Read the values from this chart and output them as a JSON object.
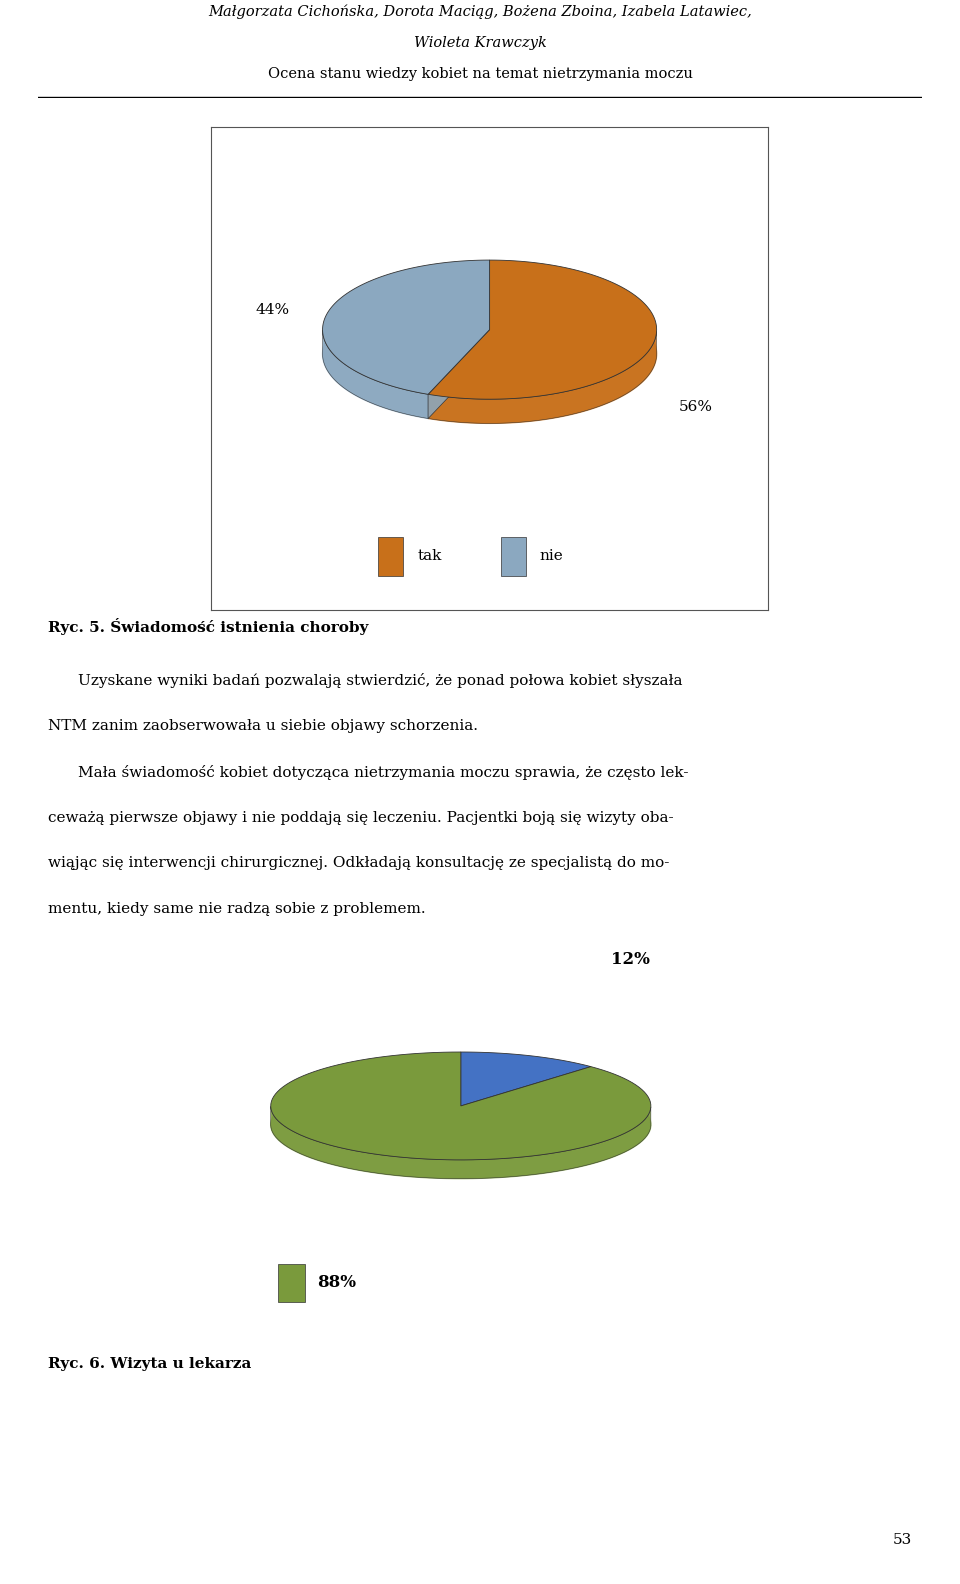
{
  "header_line1": "Małgorzata Cichońska, Dorota Maciąg, Bożena Zboina, Izabela Latawiec,",
  "header_line2": "Wioleta Krawczyk",
  "header_line3": "Ocena stanu wiedzy kobiet na temat nietrzymania moczu",
  "pie1_values": [
    56,
    44
  ],
  "pie1_colors": [
    "#C8701A",
    "#8BA8C0"
  ],
  "pie1_pct": [
    "56%",
    "44%"
  ],
  "pie1_legend_colors": [
    "#C8701A",
    "#8BA8C0"
  ],
  "pie1_legend_labels": [
    "tak",
    "nie"
  ],
  "pie2_values": [
    12,
    88
  ],
  "pie2_colors": [
    "#4472C4",
    "#7A9A3C"
  ],
  "pie2_pct": [
    "12%",
    "88%"
  ],
  "pie2_legend_colors": [
    "#7A9A3C"
  ],
  "pie2_legend_labels": [
    "88%"
  ],
  "caption1": "Ryc. 5. Świadomość istnienia choroby",
  "body_line1": "Uzyskane wyniki badań pozwalają stwierdzić, że ponad połowa kobiet słyszała",
  "body_line2": "NTM zanim zaobserwowała u siebie objawy schorzenia.",
  "body_line3": "    Mała świadomość kobiet dotycząca nietrzymania moczu sprawia, że często lek-",
  "body_line4": "ceważą pierwsze objawy i nie poddają się leczeniu. Pacjentki boją się wizyty oba-",
  "body_line5": "wiąjąc się interwencji chirurgicznej. Odkładają konsultację ze specjalistą do mo-",
  "body_line6": "mentu, kiedy same nie radzą sobie z problemem.",
  "caption2": "Ryc. 6. Wizyta u lekarza",
  "page_number": "53",
  "bg_color": "#ffffff"
}
